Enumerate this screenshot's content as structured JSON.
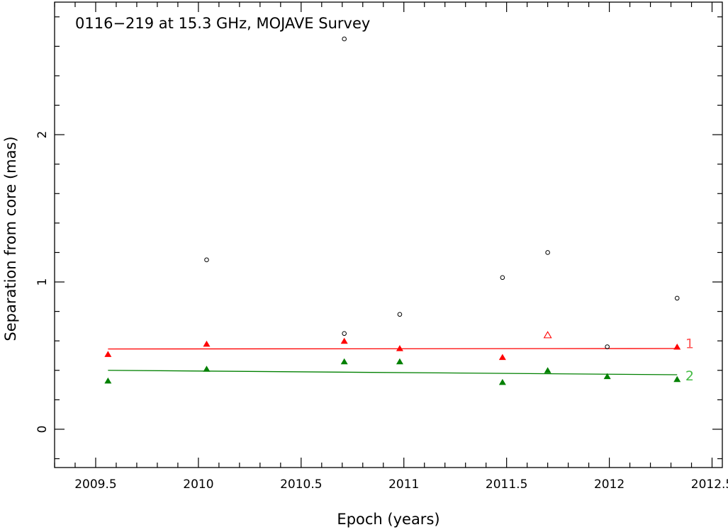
{
  "chart_data": {
    "type": "scatter",
    "title": "0116−219 at 15.3 GHz, MOJAVE Survey",
    "xlabel": "Epoch (years)",
    "ylabel": "Separation from core (mas)",
    "xlim": [
      2009.3,
      2012.55
    ],
    "ylim": [
      -0.26,
      2.9
    ],
    "x_ticks": [
      2009.5,
      2010,
      2010.5,
      2011,
      2011.5,
      2012,
      2012.5
    ],
    "x_tick_labels": [
      "2009.5",
      "2010",
      "2010.5",
      "2011",
      "2011.5",
      "2012",
      "2012.5"
    ],
    "y_ticks": [
      0,
      1,
      2
    ],
    "y_tick_labels": [
      "0",
      "1",
      "2"
    ],
    "series": [
      {
        "name": "1",
        "color": "#ff0000",
        "marker": "filled-triangle",
        "x": [
          2009.56,
          2010.04,
          2010.71,
          2010.98,
          2011.48,
          2012.33
        ],
        "y": [
          0.51,
          0.58,
          0.6,
          0.55,
          0.49,
          0.56
        ],
        "fit": {
          "x": [
            2009.56,
            2012.33
          ],
          "y": [
            0.545,
            0.548
          ]
        }
      },
      {
        "name": "2",
        "color": "#008000",
        "marker": "filled-triangle",
        "x": [
          2009.56,
          2010.04,
          2010.71,
          2010.98,
          2011.48,
          2011.7,
          2011.99,
          2012.33
        ],
        "y": [
          0.33,
          0.41,
          0.46,
          0.46,
          0.32,
          0.4,
          0.36,
          0.34
        ],
        "fit": {
          "x": [
            2009.56,
            2012.33
          ],
          "y": [
            0.4,
            0.37
          ]
        }
      },
      {
        "color": "#ff0000",
        "marker": "open-triangle",
        "x": [
          2011.7
        ],
        "y": [
          0.64
        ]
      },
      {
        "color": "#000000",
        "marker": "open-circle",
        "x": [
          2010.04,
          2010.71,
          2010.71,
          2010.98,
          2011.48,
          2011.7,
          2011.99,
          2012.33
        ],
        "y": [
          1.15,
          2.65,
          0.65,
          0.78,
          1.03,
          1.2,
          0.56,
          0.89
        ]
      }
    ],
    "series_labels": [
      {
        "text": "1",
        "color": "#ff5555",
        "x": 2012.37,
        "y": 0.58
      },
      {
        "text": "2",
        "color": "#44bb44",
        "x": 2012.37,
        "y": 0.36
      }
    ],
    "grid": false,
    "legend": "none"
  }
}
